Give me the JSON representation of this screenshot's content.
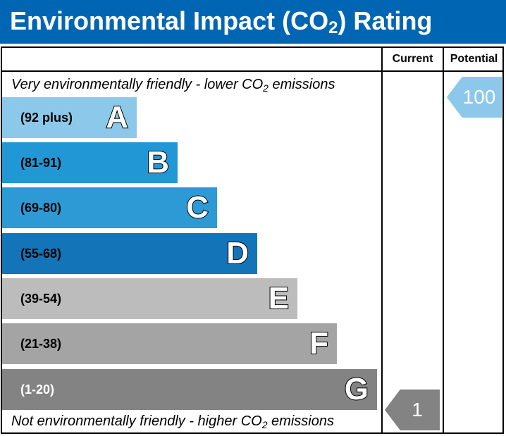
{
  "header": {
    "title_prefix": "Environmental Impact (CO",
    "title_sub": "2",
    "title_suffix": ") Rating",
    "background": "#0066b3"
  },
  "columns": {
    "current": "Current",
    "potential": "Potential"
  },
  "notes": {
    "top_prefix": "Very environmentally friendly - lower CO",
    "top_sub": "2",
    "top_suffix": " emissions",
    "bottom_prefix": "Not environmentally friendly - higher CO",
    "bottom_sub": "2",
    "bottom_suffix": " emissions"
  },
  "chart_data": {
    "type": "table",
    "bands": [
      {
        "letter": "A",
        "range": "(92 plus)",
        "color": "#8cc8ea",
        "text_color": "#000000"
      },
      {
        "letter": "B",
        "range": "(81-91)",
        "color": "#2297d6",
        "text_color": "#000000"
      },
      {
        "letter": "C",
        "range": "(69-80)",
        "color": "#2d9ad6",
        "text_color": "#000000"
      },
      {
        "letter": "D",
        "range": "(55-68)",
        "color": "#1474b8",
        "text_color": "#000000"
      },
      {
        "letter": "E",
        "range": "(39-54)",
        "color": "#bcbcbc",
        "text_color": "#000000"
      },
      {
        "letter": "F",
        "range": "(21-38)",
        "color": "#a4a4a4",
        "text_color": "#000000"
      },
      {
        "letter": "G",
        "range": "(1-20)",
        "color": "#838383",
        "text_color": "#ffffff"
      }
    ],
    "current": {
      "value": "1",
      "band": "G",
      "color": "#838383"
    },
    "potential": {
      "value": "100",
      "band": "A",
      "color": "#8cc8ea"
    }
  }
}
